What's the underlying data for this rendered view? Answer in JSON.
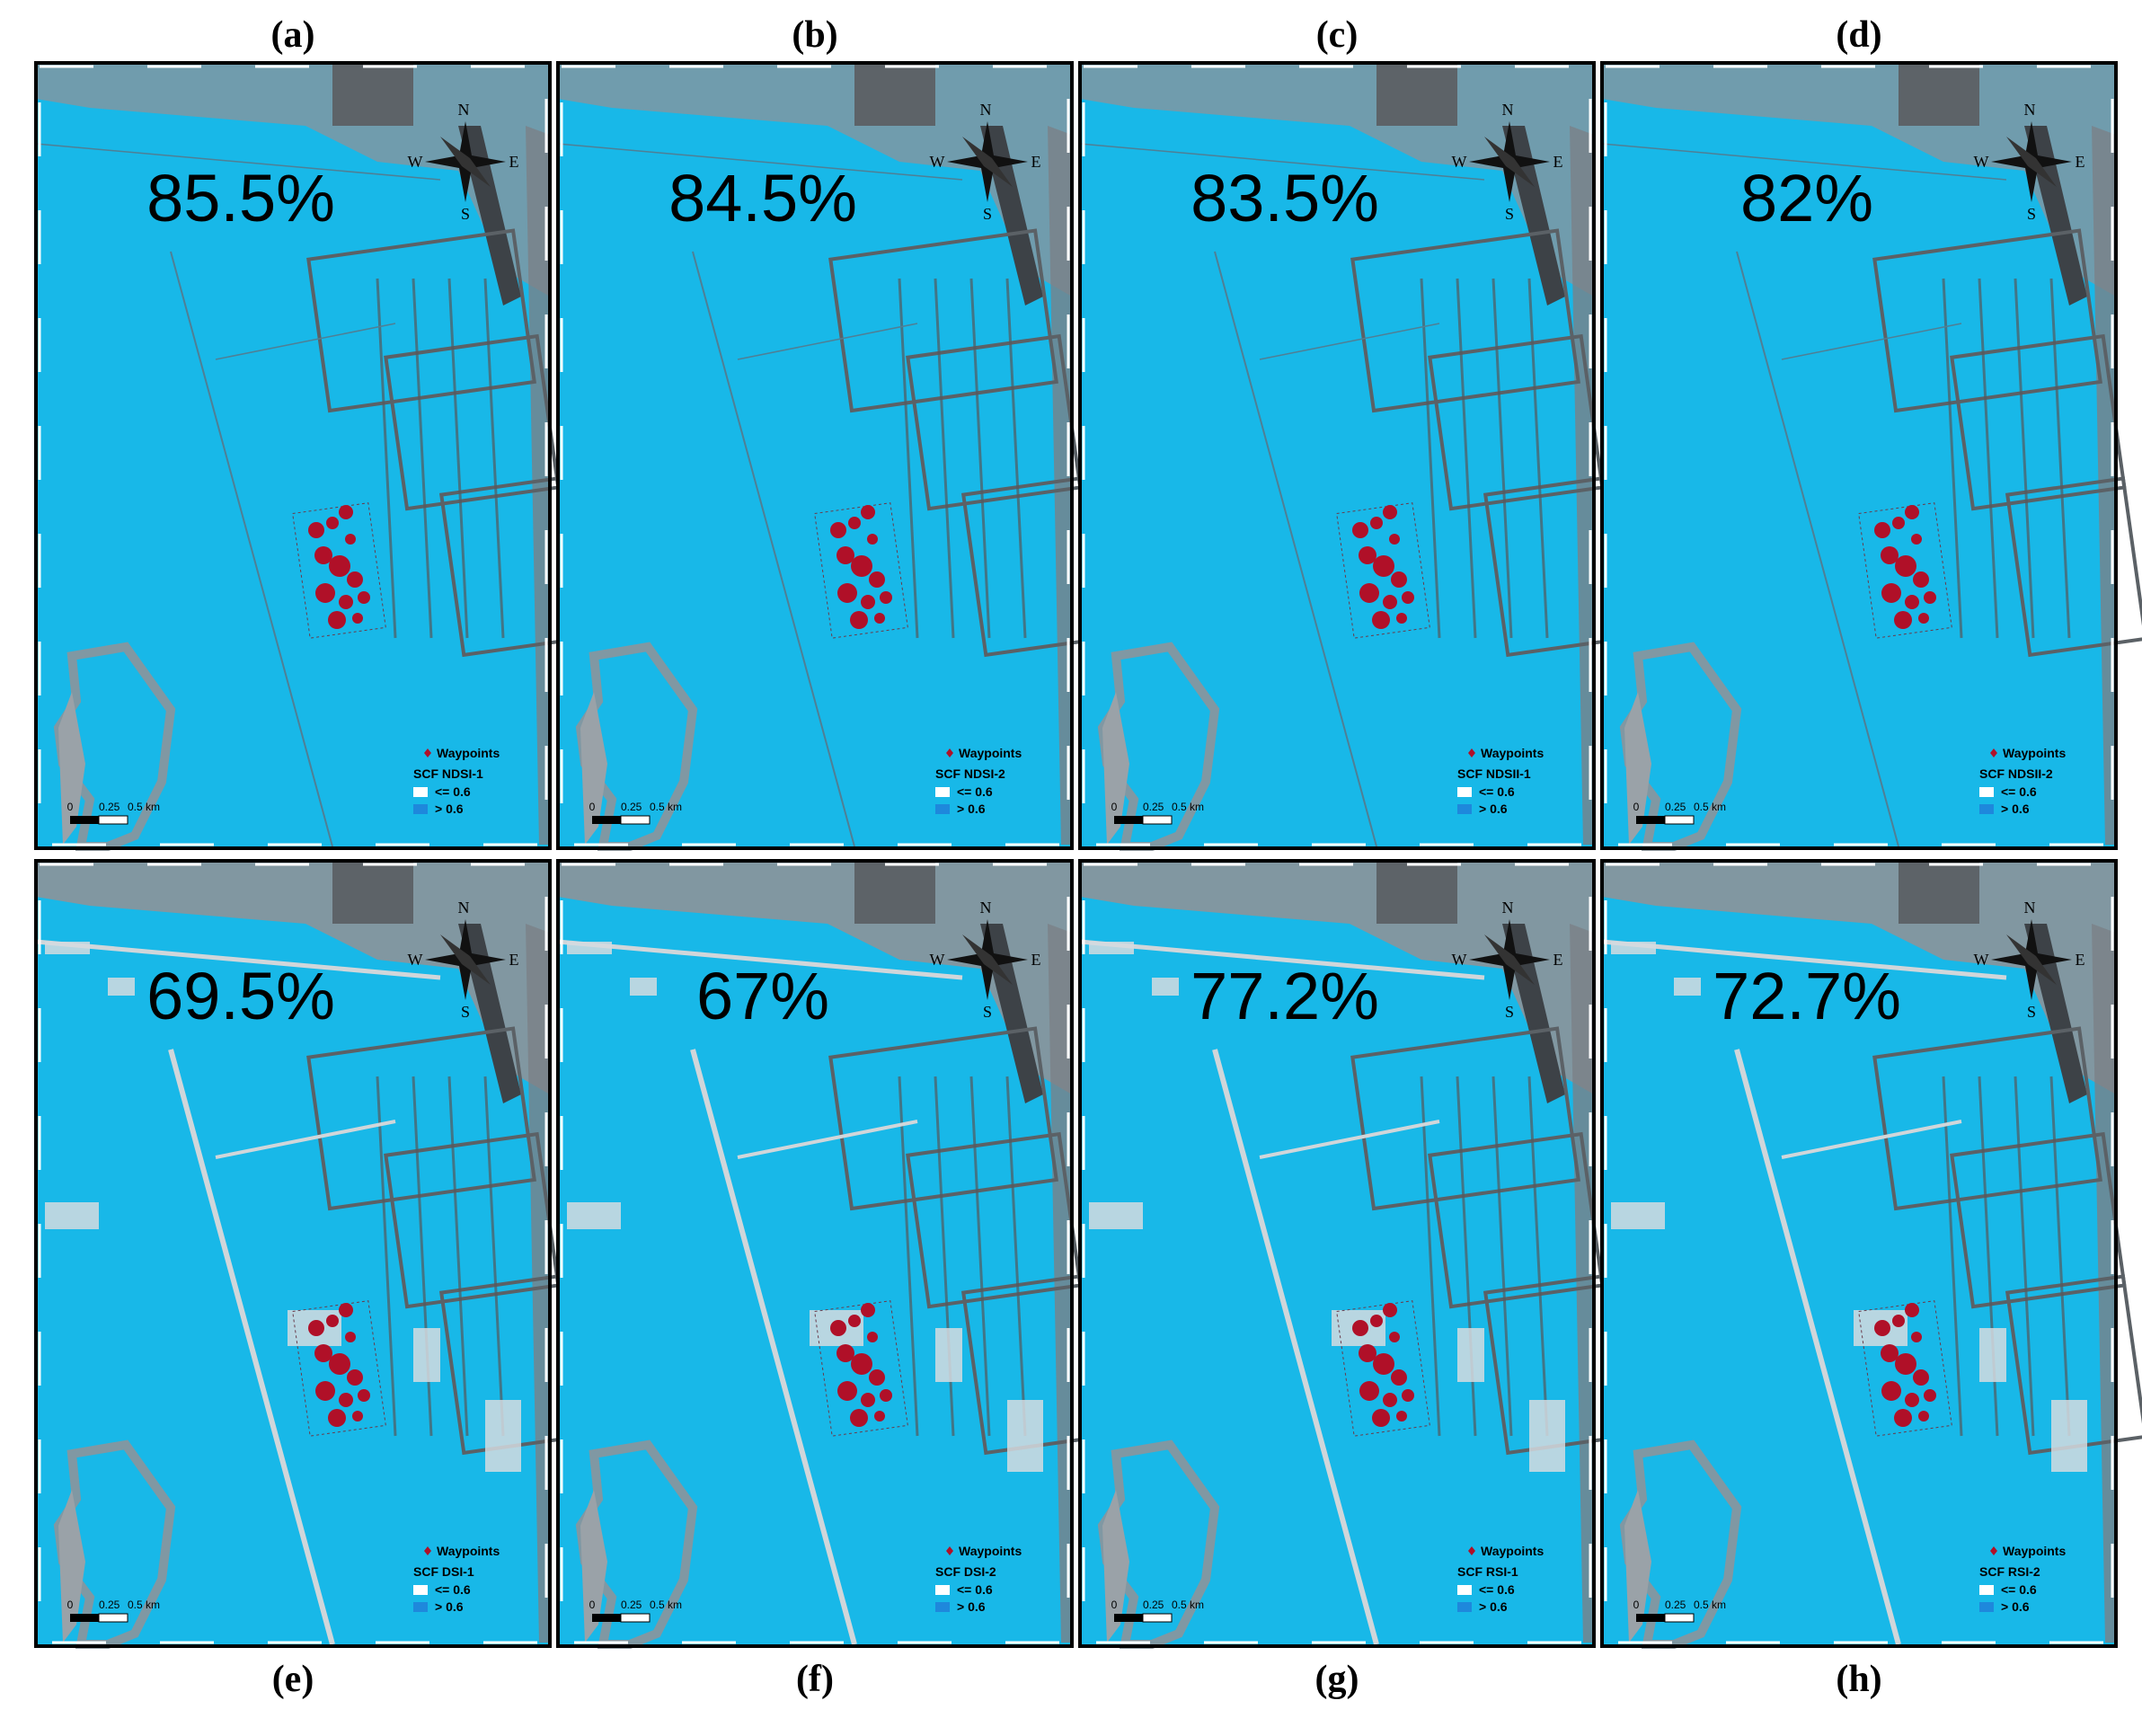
{
  "panels": [
    {
      "label": "(a)",
      "percentage": "85.5%",
      "legend_title": "SCF NDSI-1"
    },
    {
      "label": "(b)",
      "percentage": "84.5%",
      "legend_title": "SCF NDSI-2"
    },
    {
      "label": "(c)",
      "percentage": "83.5%",
      "legend_title": "SCF NDSII-1"
    },
    {
      "label": "(d)",
      "percentage": "82%",
      "legend_title": "SCF NDSII-2"
    },
    {
      "label": "(e)",
      "percentage": "69.5%",
      "legend_title": "SCF DSI-1"
    },
    {
      "label": "(f)",
      "percentage": "67%",
      "legend_title": "SCF DSI-2"
    },
    {
      "label": "(g)",
      "percentage": "77.2%",
      "legend_title": "SCF RSI-1"
    },
    {
      "label": "(h)",
      "percentage": "72.7%",
      "legend_title": "SCF RSI-2"
    }
  ],
  "legend": {
    "waypoints": "Waypoints",
    "class_low": "<= 0.6",
    "class_high": "> 0.6"
  },
  "compass": {
    "n": "N",
    "e": "E",
    "s": "S",
    "w": "W"
  },
  "scale_bar": [
    "0",
    "0.25",
    "0.5 km"
  ]
}
